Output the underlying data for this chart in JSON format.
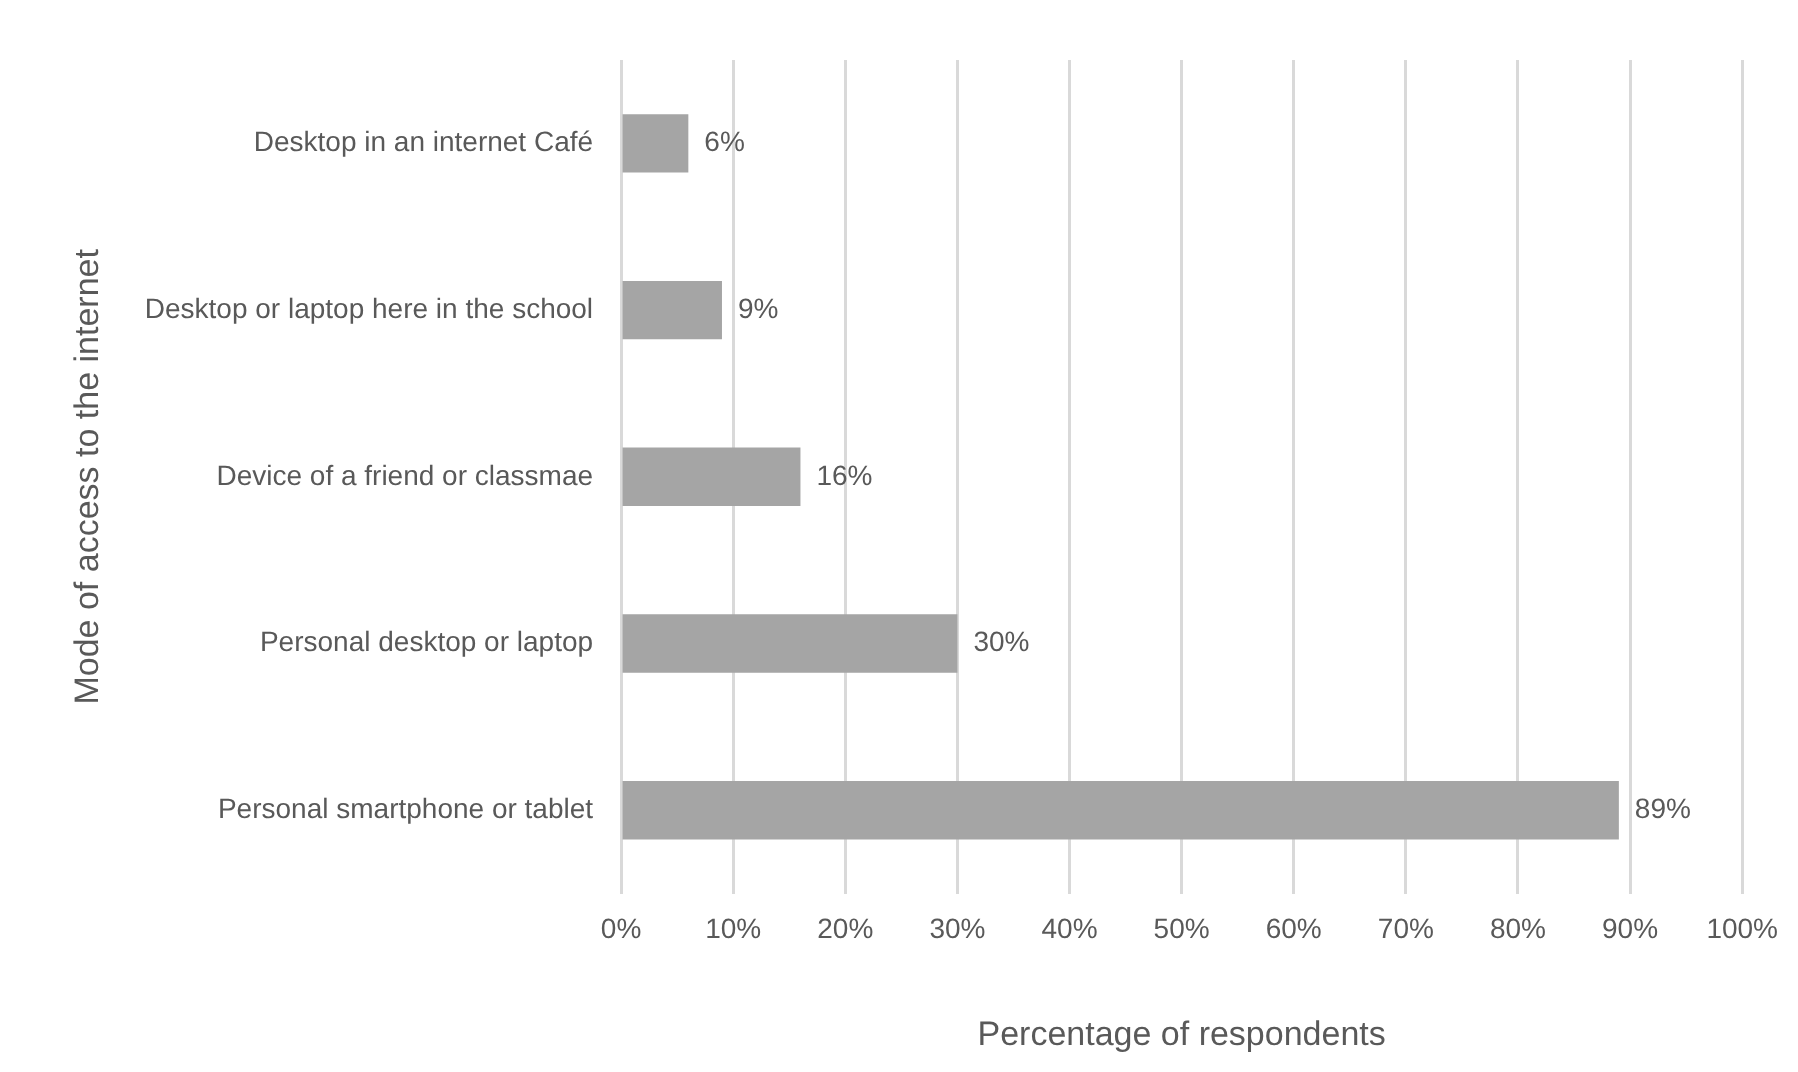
{
  "chart_data": {
    "type": "bar",
    "orientation": "horizontal",
    "xlabel": "Percentage of respondents",
    "ylabel": "Mode of access to the internet",
    "categories": [
      "Desktop in an internet Café",
      "Desktop or laptop here in the school",
      "Device of a friend or classmae",
      "Personal desktop or laptop",
      "Personal smartphone or tablet"
    ],
    "values": [
      6,
      9,
      16,
      30,
      89
    ],
    "value_labels": [
      "6%",
      "9%",
      "16%",
      "30%",
      "89%"
    ],
    "color": "#a5a5a5",
    "xlim": [
      0,
      100
    ],
    "xticks": [
      {
        "value": 0,
        "label": "0%"
      },
      {
        "value": 10,
        "label": "10%"
      },
      {
        "value": 20,
        "label": "20%"
      },
      {
        "value": 30,
        "label": "30%"
      },
      {
        "value": 40,
        "label": "40%"
      },
      {
        "value": 50,
        "label": "50%"
      },
      {
        "value": 60,
        "label": "60%"
      },
      {
        "value": 70,
        "label": "70%"
      },
      {
        "value": 80,
        "label": "80%"
      },
      {
        "value": 90,
        "label": "90%"
      },
      {
        "value": 100,
        "label": "100%"
      }
    ],
    "grid": "x",
    "legend": false
  }
}
